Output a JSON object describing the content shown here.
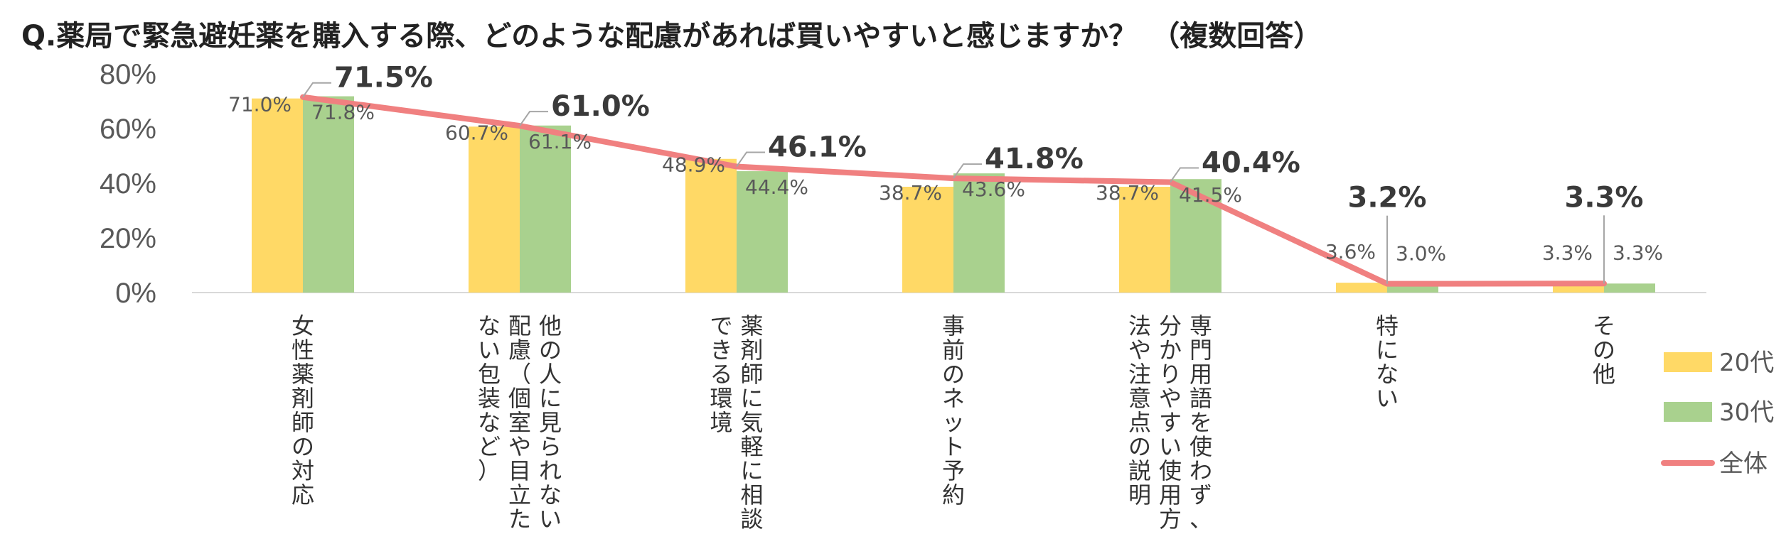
{
  "title": "Q.薬局で緊急避妊薬を購入する際、どのような配慮があれば買いやすいと感じますか？　（複数回答）",
  "colors": {
    "bar_20": "#FFD966",
    "bar_30": "#A9D18E",
    "line_total": "#F08080"
  },
  "chart_data": {
    "type": "bar",
    "categories": [
      [
        "女性薬剤師の対応"
      ],
      [
        "他の人に見られない",
        "配慮（個室や目立た",
        "ない包装など）"
      ],
      [
        "薬剤師に気軽に相談",
        "できる環境"
      ],
      [
        "事前のネット予約"
      ],
      [
        "専門用語を使わず、",
        "分かりやすい使用方",
        "法や注意点の説明"
      ],
      [
        "特にない"
      ],
      [
        "その他"
      ]
    ],
    "series": [
      {
        "name": "20代",
        "type": "bar",
        "values": [
          71.0,
          60.7,
          48.9,
          38.7,
          38.7,
          3.6,
          3.3
        ],
        "labels": [
          "71.0%",
          "60.7%",
          "48.9%",
          "38.7%",
          "38.7%",
          "3.6%",
          "3.3%"
        ]
      },
      {
        "name": "30代",
        "type": "bar",
        "values": [
          71.8,
          61.1,
          44.4,
          43.6,
          41.5,
          3.0,
          3.3
        ],
        "labels": [
          "71.8%",
          "61.1%",
          "44.4%",
          "43.6%",
          "41.5%",
          "3.0%",
          "3.3%"
        ]
      },
      {
        "name": "全体",
        "type": "line",
        "values": [
          71.5,
          61.0,
          46.1,
          41.8,
          40.4,
          3.2,
          3.3
        ],
        "labels": [
          "71.5%",
          "61.0%",
          "46.1%",
          "41.8%",
          "40.4%",
          "3.2%",
          "3.3%"
        ]
      }
    ],
    "yticks": [
      "0%",
      "20%",
      "40%",
      "60%",
      "80%"
    ],
    "ylim": [
      0,
      80
    ],
    "legend": "right"
  }
}
